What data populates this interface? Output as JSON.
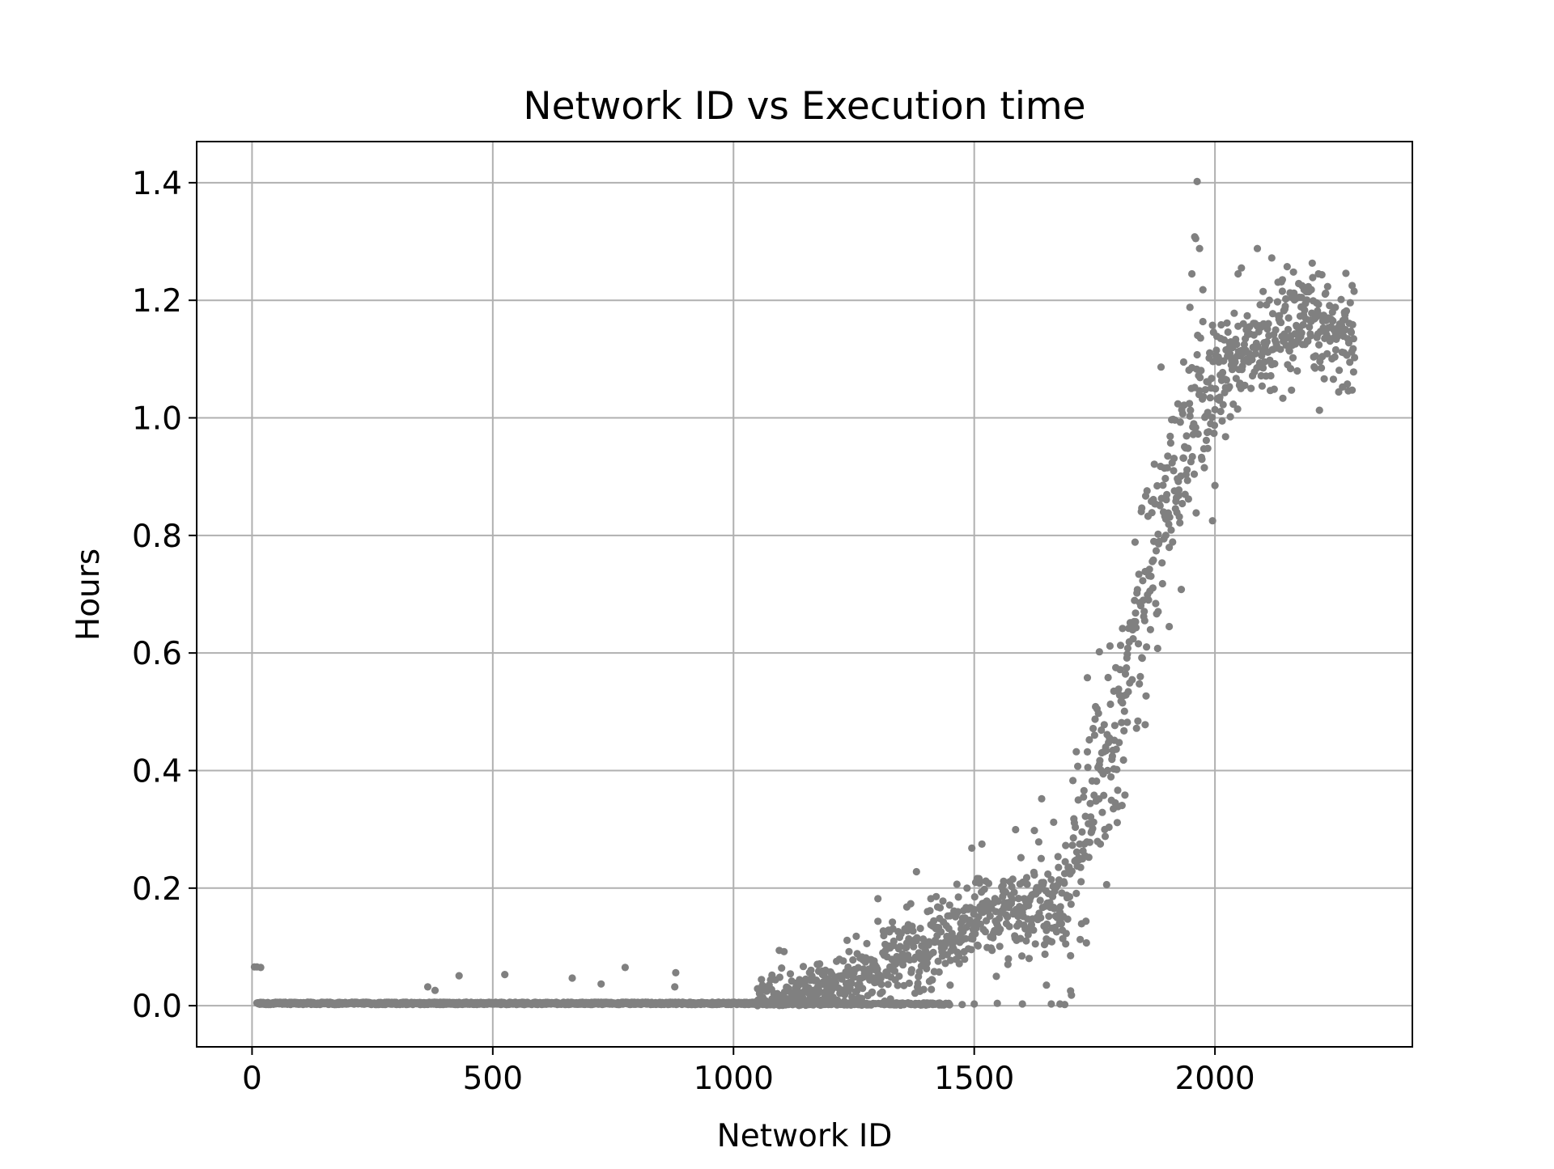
{
  "chart_data": {
    "type": "scatter",
    "title": "Network ID vs Execution time",
    "xlabel": "Network ID",
    "ylabel": "Hours",
    "xlim": [
      -115,
      2410
    ],
    "ylim": [
      -0.07,
      1.47
    ],
    "xticks": [
      0,
      500,
      1000,
      1500,
      2000
    ],
    "xtick_labels": [
      "0",
      "500",
      "1000",
      "1500",
      "2000"
    ],
    "yticks": [
      0.0,
      0.2,
      0.4,
      0.6,
      0.8,
      1.0,
      1.2,
      1.4
    ],
    "ytick_labels": [
      "0.0",
      "0.2",
      "0.4",
      "0.6",
      "0.8",
      "1.0",
      "1.2",
      "1.4"
    ],
    "grid": true,
    "legend": null,
    "marker_color": "#808080",
    "grid_color": "#b0b0b0",
    "trend_points": [
      [
        0,
        0.003
      ],
      [
        500,
        0.003
      ],
      [
        1000,
        0.004
      ],
      [
        1100,
        0.01
      ],
      [
        1200,
        0.03
      ],
      [
        1300,
        0.06
      ],
      [
        1400,
        0.1
      ],
      [
        1500,
        0.14
      ],
      [
        1600,
        0.17
      ],
      [
        1680,
        0.19
      ],
      [
        1720,
        0.25
      ],
      [
        1750,
        0.36
      ],
      [
        1800,
        0.48
      ],
      [
        1850,
        0.7
      ],
      [
        1900,
        0.85
      ],
      [
        1950,
        0.98
      ],
      [
        2000,
        1.06
      ],
      [
        2050,
        1.1
      ],
      [
        2100,
        1.12
      ],
      [
        2200,
        1.15
      ],
      [
        2290,
        1.14
      ]
    ],
    "points": [
      [
        5,
        0.066
      ],
      [
        10,
        0.066
      ],
      [
        18,
        0.065
      ],
      [
        365,
        0.032
      ],
      [
        380,
        0.026
      ],
      [
        430,
        0.051
      ],
      [
        525,
        0.053
      ],
      [
        665,
        0.047
      ],
      [
        725,
        0.037
      ],
      [
        775,
        0.065
      ],
      [
        880,
        0.056
      ],
      [
        878,
        0.032
      ],
      [
        1050,
        0.029
      ],
      [
        1080,
        0.052
      ],
      [
        1095,
        0.094
      ],
      [
        1105,
        0.092
      ],
      [
        1100,
        0.064
      ],
      [
        1150,
        0.045
      ],
      [
        1185,
        0.053
      ],
      [
        1240,
        0.092
      ],
      [
        1255,
        0.118
      ],
      [
        1300,
        0.182
      ],
      [
        1325,
        0.098
      ],
      [
        1360,
        0.168
      ],
      [
        1380,
        0.228
      ],
      [
        1410,
        0.182
      ],
      [
        1435,
        0.178
      ],
      [
        1450,
        0.035
      ],
      [
        1495,
        0.268
      ],
      [
        1560,
        0.205
      ],
      [
        1625,
        0.298
      ],
      [
        1640,
        0.352
      ],
      [
        1665,
        0.312
      ],
      [
        1650,
        0.128
      ],
      [
        1690,
        0.105
      ],
      [
        1700,
        0.085
      ],
      [
        1712,
        0.432
      ],
      [
        1735,
        0.558
      ],
      [
        1760,
        0.602
      ],
      [
        1770,
        0.478
      ],
      [
        1790,
        0.535
      ],
      [
        1808,
        0.515
      ],
      [
        1818,
        0.598
      ],
      [
        1835,
        0.668
      ],
      [
        1848,
        0.592
      ],
      [
        1855,
        0.478
      ],
      [
        1872,
        0.758
      ],
      [
        1882,
        0.802
      ],
      [
        1898,
        0.828
      ],
      [
        1905,
        0.645
      ],
      [
        1925,
        0.868
      ],
      [
        1935,
        1.095
      ],
      [
        1948,
        1.188
      ],
      [
        1952,
        1.245
      ],
      [
        1958,
        1.308
      ],
      [
        1960,
        1.305
      ],
      [
        1963,
        1.402
      ],
      [
        1968,
        1.288
      ],
      [
        1975,
        1.218
      ],
      [
        1985,
        0.948
      ],
      [
        1995,
        0.825
      ],
      [
        2000,
        0.885
      ],
      [
        2012,
        1.135
      ],
      [
        2022,
        0.968
      ],
      [
        2030,
        1.128
      ],
      [
        2040,
        1.178
      ],
      [
        2048,
        1.245
      ],
      [
        2055,
        1.255
      ],
      [
        2072,
        1.155
      ],
      [
        2088,
        1.288
      ],
      [
        2100,
        1.215
      ],
      [
        2118,
        1.272
      ],
      [
        2140,
        1.235
      ],
      [
        2160,
        1.205
      ],
      [
        2180,
        1.205
      ],
      [
        2200,
        1.218
      ],
      [
        2215,
        1.245
      ],
      [
        2230,
        1.212
      ],
      [
        2250,
        1.188
      ],
      [
        2270,
        1.168
      ],
      [
        2285,
        1.225
      ],
      [
        2288,
        1.078
      ],
      [
        1475,
        0.002
      ],
      [
        1500,
        0.003
      ],
      [
        1548,
        0.004
      ],
      [
        1600,
        0.003
      ],
      [
        1650,
        0.035
      ],
      [
        1660,
        0.003
      ],
      [
        1678,
        0.003
      ],
      [
        1688,
        0.002
      ]
    ]
  }
}
